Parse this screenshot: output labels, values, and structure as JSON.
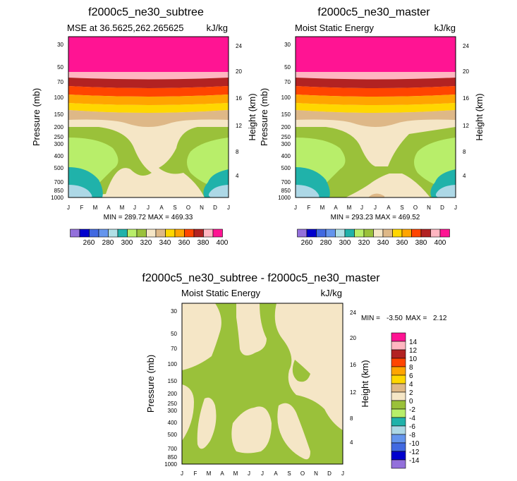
{
  "chart_data": [
    {
      "type": "contour",
      "title": "f2000c5_ne30_subtree",
      "subtitle_left": "MSE at 36.5625,262.265625",
      "subtitle_right": "kJ/kg",
      "xlabel": "",
      "ylabel": "Pressure (mb)",
      "ylabel_right": "Height (km)",
      "x_ticks": [
        "J",
        "F",
        "M",
        "A",
        "M",
        "J",
        "J",
        "A",
        "S",
        "O",
        "N",
        "D",
        "J"
      ],
      "y_ticks": [
        "30",
        "50",
        "70",
        "100",
        "150",
        "200",
        "250",
        "300",
        "400",
        "500",
        "700",
        "850",
        "1000"
      ],
      "y_right_ticks": [
        "24",
        "20",
        "16",
        "12",
        "8",
        "4"
      ],
      "stats": "MIN = 289.72 MAX = 469.33",
      "colorbar_labels": [
        "260",
        "280",
        "300",
        "320",
        "340",
        "360",
        "380",
        "400"
      ],
      "contour_levels": [
        250,
        260,
        270,
        280,
        290,
        300,
        310,
        320,
        330,
        340,
        350,
        360,
        370,
        380,
        390,
        400
      ]
    },
    {
      "type": "contour",
      "title": "f2000c5_ne30_master",
      "subtitle_left": "Moist Static Energy",
      "subtitle_right": "kJ/kg",
      "xlabel": "",
      "ylabel": "Pressure (mb)",
      "ylabel_right": "Height (km)",
      "x_ticks": [
        "J",
        "F",
        "M",
        "A",
        "M",
        "J",
        "J",
        "A",
        "S",
        "O",
        "N",
        "D",
        "J"
      ],
      "y_ticks": [
        "30",
        "50",
        "70",
        "100",
        "150",
        "200",
        "250",
        "300",
        "400",
        "500",
        "700",
        "850",
        "1000"
      ],
      "y_right_ticks": [
        "24",
        "20",
        "16",
        "12",
        "8",
        "4"
      ],
      "stats": "MIN = 293.23 MAX = 469.52",
      "colorbar_labels": [
        "260",
        "280",
        "300",
        "320",
        "340",
        "360",
        "380",
        "400"
      ],
      "contour_levels": [
        250,
        260,
        270,
        280,
        290,
        300,
        310,
        320,
        330,
        340,
        350,
        360,
        370,
        380,
        390,
        400
      ]
    },
    {
      "type": "contour",
      "title": "f2000c5_ne30_subtree - f2000c5_ne30_master",
      "subtitle_left": "Moist Static Energy",
      "subtitle_right": "kJ/kg",
      "xlabel": "",
      "ylabel": "Pressure (mb)",
      "ylabel_right": "Height (km)",
      "x_ticks": [
        "J",
        "F",
        "M",
        "A",
        "M",
        "J",
        "J",
        "A",
        "S",
        "O",
        "N",
        "D",
        "J"
      ],
      "y_ticks": [
        "30",
        "50",
        "70",
        "100",
        "150",
        "200",
        "250",
        "300",
        "400",
        "500",
        "700",
        "850",
        "1000"
      ],
      "y_right_ticks": [
        "24",
        "20",
        "16",
        "12",
        "8",
        "4"
      ],
      "stats_min_label": "MIN =",
      "stats_min": "-3.50",
      "stats_max_label": "MAX =",
      "stats_max": "2.12",
      "colorbar_labels": [
        "14",
        "12",
        "10",
        "8",
        "6",
        "4",
        "2",
        "0",
        "-2",
        "-4",
        "-6",
        "-8",
        "-10",
        "-12",
        "-14"
      ],
      "contour_levels": [
        -14,
        -12,
        -10,
        -8,
        -6,
        -4,
        -2,
        0,
        2,
        4,
        6,
        8,
        10,
        12,
        14
      ]
    }
  ],
  "palette": {
    "mse": [
      "#9370db",
      "#0000cd",
      "#4169e1",
      "#6495ed",
      "#b0e0e6",
      "#20b2aa",
      "#b8ee6a",
      "#9ac13a",
      "#f5e6c6",
      "#deb887",
      "#ffd700",
      "#ffa500",
      "#ff4500",
      "#b22222",
      "#ffb6c1",
      "#ff1493"
    ],
    "diff": [
      "#ff1493",
      "#ffb6c1",
      "#b22222",
      "#ff4500",
      "#ffa500",
      "#ffd700",
      "#deb887",
      "#f5e6c6",
      "#9ac13a",
      "#b8ee6a",
      "#20b2aa",
      "#add8e6",
      "#6495ed",
      "#4169e1",
      "#0000cd",
      "#9370db"
    ]
  }
}
